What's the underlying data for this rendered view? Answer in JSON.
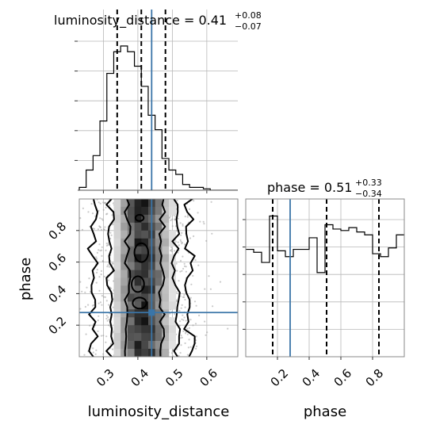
{
  "colors": {
    "truth": "#3a75a8",
    "density_dark": "#0a0a0a",
    "scatter": "#9e9e9e"
  },
  "chart_data": {
    "type": "corner",
    "parameters": [
      "luminosity_distance",
      "phase"
    ],
    "truth": {
      "luminosity_distance": 0.44,
      "phase": 0.28
    },
    "panels": {
      "luminosity_distance_hist": {
        "title": {
          "prefix": "luminosity_distance = ",
          "median": "0.41",
          "plus": "+0.08",
          "minus": "−0.07"
        },
        "xlim": [
          0.23,
          0.69
        ],
        "bins_left_edge": 0.23,
        "bin_width": 0.02,
        "counts": [
          0.02,
          0.14,
          0.24,
          0.48,
          0.81,
          0.96,
          1.0,
          0.96,
          0.86,
          0.72,
          0.52,
          0.42,
          0.22,
          0.14,
          0.11,
          0.04,
          0.02,
          0.02,
          0.01,
          0.0,
          0.0,
          0.0,
          0.0
        ],
        "quantiles": [
          0.34,
          0.41,
          0.48
        ]
      },
      "phase_hist": {
        "title": {
          "prefix": "phase = ",
          "median": "0.51",
          "plus": "+0.33",
          "minus": "−0.34"
        },
        "xlim": [
          0.0,
          1.0
        ],
        "bins_left_edge": 0.0,
        "bin_width": 0.05,
        "counts": [
          0.74,
          0.72,
          0.65,
          0.97,
          0.73,
          0.69,
          0.74,
          0.74,
          0.82,
          0.58,
          0.91,
          0.88,
          0.87,
          0.89,
          0.86,
          0.84,
          0.71,
          0.69,
          0.75,
          0.84
        ],
        "quantiles": [
          0.17,
          0.51,
          0.84
        ]
      },
      "joint": {
        "xlim": [
          0.23,
          0.69
        ],
        "ylim": [
          0.0,
          1.0
        ],
        "contour_x_levels_left": [
          0.37,
          0.32,
          0.27
        ],
        "contour_x_levels_right": [
          0.47,
          0.51,
          0.55
        ]
      }
    },
    "axes": {
      "xlabel_left": "luminosity_distance",
      "xlabel_right": "phase",
      "ylabel": "phase",
      "ld_ticks": [
        "0.3",
        "0.4",
        "0.5",
        "0.6"
      ],
      "ld_tick_values": [
        0.3,
        0.4,
        0.5,
        0.6
      ],
      "phase_ticks": [
        "0.2",
        "0.4",
        "0.6",
        "0.8"
      ],
      "phase_tick_values": [
        0.2,
        0.4,
        0.6,
        0.8
      ]
    }
  }
}
